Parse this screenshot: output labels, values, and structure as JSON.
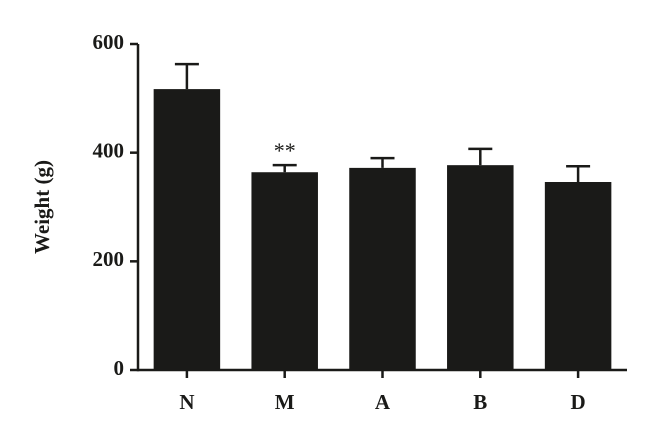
{
  "chart_data": {
    "type": "bar",
    "y_label": "Weight (g)",
    "categories": [
      "N",
      "M",
      "A",
      "B",
      "D"
    ],
    "values": [
      517,
      364,
      372,
      377,
      346
    ],
    "errors": [
      46,
      13,
      18,
      30,
      29
    ],
    "annotations": [
      null,
      "**",
      null,
      null,
      null
    ],
    "color": "#1a1a18",
    "ylim": [
      0,
      600
    ],
    "yticks": [
      0,
      200,
      400,
      600
    ],
    "grid": false
  }
}
